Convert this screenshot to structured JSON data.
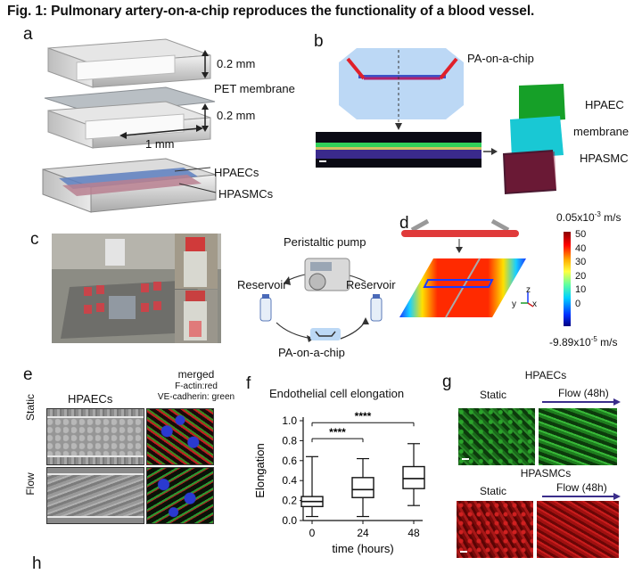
{
  "figure": {
    "title": "Fig. 1: Pulmonary artery-on-a-chip reproduces the functionality of a blood vessel.",
    "next_panel_letter": "h"
  },
  "panel_a": {
    "letter": "a",
    "dim_top": "0.2 mm",
    "membrane": "PET membrane",
    "dim_bottom": "0.2 mm",
    "width": "1 mm",
    "cells_top": "HPAECs",
    "cells_bottom": "HPASMCs"
  },
  "panel_b": {
    "letter": "b",
    "chip": "PA-on-a-chip",
    "layers": [
      "HPAEC",
      "membrane",
      "HPASMC"
    ]
  },
  "panel_c": {
    "letter": "c",
    "pump": "Peristaltic pump",
    "reservoir_left": "Reservoir",
    "reservoir_right": "Reservoir",
    "chip": "PA-on-a-chip"
  },
  "panel_d": {
    "letter": "d",
    "scale_max": "0.05x10",
    "scale_max_exp": "-3",
    "scale_max_unit": " m/s",
    "scale_min": "-9.89x10",
    "scale_min_exp": "-5",
    "scale_min_unit": " m/s",
    "ticks": [
      "50",
      "40",
      "30",
      "20",
      "10",
      "0"
    ],
    "axis_z": "z",
    "axis_y": "y",
    "axis_x": "x"
  },
  "panel_e": {
    "letter": "e",
    "col1": "HPAECs",
    "col2": "merged",
    "col2_sub1": "F-actin:red",
    "col2_sub2": "VE-cadherin: green",
    "row1": "Static",
    "row2": "Flow"
  },
  "panel_f": {
    "letter": "f",
    "chart_data": {
      "type": "box",
      "title": "Endothelial cell elongation",
      "xlabel": "time (hours)",
      "ylabel": "Elongation",
      "categories": [
        "0",
        "24",
        "48"
      ],
      "ylim": [
        0,
        1.0
      ],
      "yticks": [
        "0.0",
        "0.2",
        "0.4",
        "0.6",
        "0.8",
        "1.0"
      ],
      "boxes": [
        {
          "min": 0.04,
          "q1": 0.14,
          "median": 0.19,
          "q3": 0.24,
          "max": 0.64
        },
        {
          "min": 0.04,
          "q1": 0.23,
          "median": 0.31,
          "q3": 0.43,
          "max": 0.62
        },
        {
          "min": 0.15,
          "q1": 0.32,
          "median": 0.42,
          "q3": 0.54,
          "max": 0.77
        }
      ],
      "significance": [
        {
          "from": 0,
          "to": 1,
          "label": "****"
        },
        {
          "from": 0,
          "to": 2,
          "label": "****"
        }
      ]
    }
  },
  "panel_g": {
    "letter": "g",
    "hpaecs": "HPAECs",
    "hpasmcs": "HPASMCs",
    "static1": "Static",
    "flow1": "Flow (48h)",
    "static2": "Static",
    "flow2": "Flow (48h)"
  },
  "colors": {
    "green_cells": "#1f9a1f",
    "red_cells": "#b01010",
    "arrow_purple": "#3a2d8a",
    "chip_blue": "#bcd8f5"
  }
}
